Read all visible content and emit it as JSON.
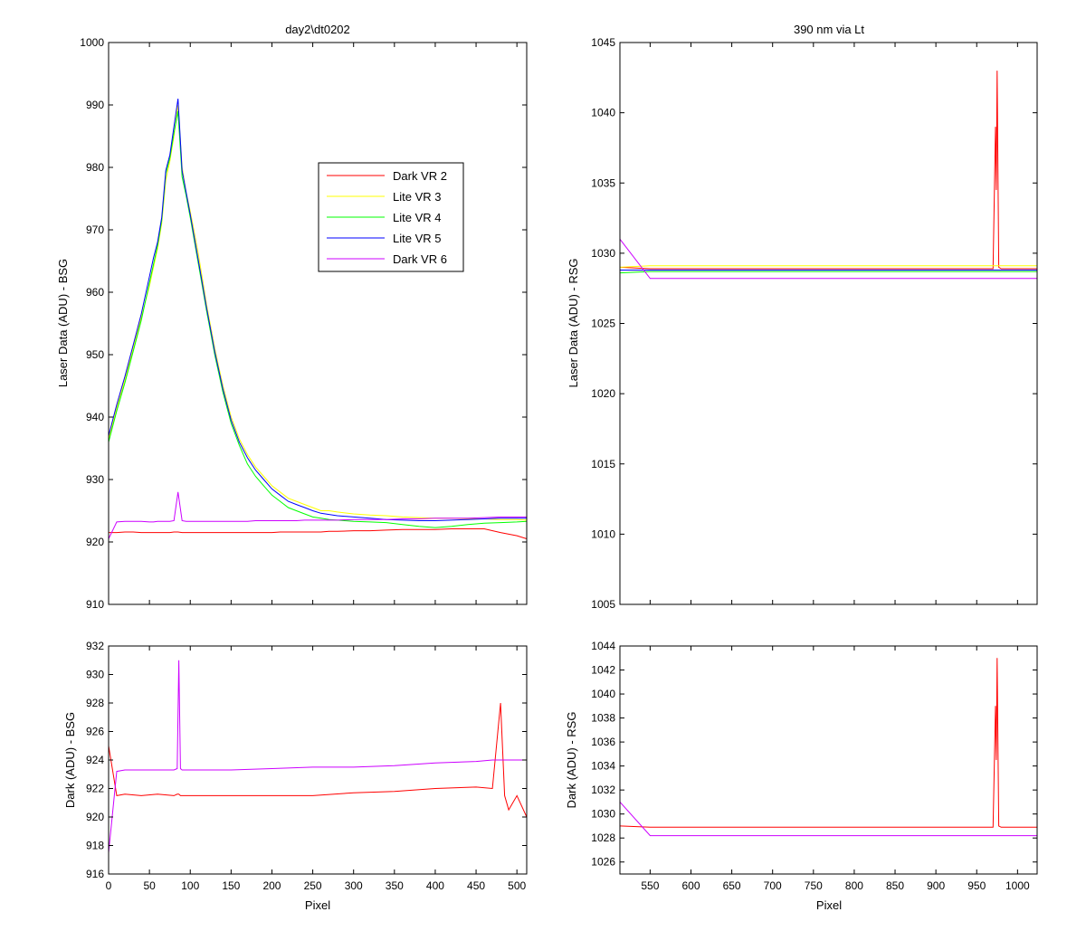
{
  "chart_data": [
    {
      "type": "line",
      "panel": "top-left",
      "title": "day2\\dt0202",
      "xlabel": "",
      "ylabel": "Laser Data (ADU) - BSG",
      "xlim": [
        0,
        512
      ],
      "ylim": [
        910,
        1000
      ],
      "xticks": [
        0,
        50,
        100,
        150,
        200,
        250,
        300,
        350,
        400,
        450,
        500
      ],
      "yticks": [
        910,
        920,
        930,
        940,
        950,
        960,
        970,
        980,
        990,
        1000
      ],
      "xtick_labels_visible": false,
      "grid": false,
      "legend": "center-right",
      "x": [
        0,
        10,
        20,
        30,
        40,
        50,
        55,
        60,
        65,
        70,
        75,
        80,
        85,
        90,
        95,
        100,
        110,
        120,
        130,
        140,
        150,
        160,
        170,
        180,
        190,
        200,
        210,
        220,
        230,
        240,
        250,
        260,
        270,
        280,
        300,
        320,
        340,
        360,
        380,
        400,
        420,
        440,
        460,
        480,
        500,
        512
      ],
      "series": [
        {
          "name": "Dark VR 2",
          "color": "#ff0000",
          "values": [
            921.5,
            921.5,
            921.6,
            921.6,
            921.5,
            921.5,
            921.5,
            921.5,
            921.5,
            921.5,
            921.5,
            921.6,
            921.6,
            921.5,
            921.5,
            921.5,
            921.5,
            921.5,
            921.5,
            921.5,
            921.5,
            921.5,
            921.5,
            921.5,
            921.5,
            921.5,
            921.6,
            921.6,
            921.6,
            921.6,
            921.6,
            921.6,
            921.7,
            921.7,
            921.8,
            921.8,
            921.9,
            922.0,
            922.0,
            922.0,
            922.1,
            922.1,
            922.1,
            921.5,
            921.0,
            920.5
          ]
        },
        {
          "name": "Lite VR 3",
          "color": "#ffff00",
          "values": [
            936.5,
            941.5,
            946,
            951,
            956,
            961,
            964,
            967,
            971,
            978,
            981,
            985,
            990,
            980,
            976,
            973,
            966,
            958,
            951,
            945,
            940,
            936.5,
            934,
            932,
            930.5,
            929,
            928,
            927,
            926.5,
            926,
            925.5,
            925,
            925,
            924.8,
            924.5,
            924.3,
            924.2,
            924.0,
            923.9,
            923.8,
            923.8,
            923.7,
            923.7,
            923.6,
            923.6,
            923.5
          ]
        },
        {
          "name": "Lite VR 4",
          "color": "#00ff00",
          "values": [
            936,
            941,
            945.5,
            950.5,
            955.5,
            961.5,
            964.5,
            967.5,
            971.5,
            979,
            981.5,
            985.5,
            989,
            978.5,
            975.5,
            972,
            964.5,
            957,
            950,
            944,
            939,
            935.5,
            932.5,
            930.5,
            929,
            927.5,
            926.5,
            925.5,
            925,
            924.5,
            924,
            923.8,
            923.6,
            923.5,
            923.3,
            923.2,
            923.1,
            922.8,
            922.5,
            922.3,
            922.5,
            922.8,
            923.0,
            923.1,
            923.2,
            923.3
          ]
        },
        {
          "name": "Lite VR 5",
          "color": "#0000ff",
          "values": [
            937,
            942,
            946.5,
            951.5,
            956.5,
            962.5,
            965.5,
            968,
            972,
            979.5,
            982,
            986.5,
            991,
            979.5,
            976,
            972.5,
            965,
            957.5,
            950.5,
            944.5,
            939.5,
            936,
            933.5,
            931.5,
            930,
            928.5,
            927.5,
            926.5,
            926,
            925.5,
            925,
            924.6,
            924.4,
            924.2,
            924.0,
            923.8,
            923.6,
            923.5,
            923.4,
            923.4,
            923.5,
            923.6,
            923.7,
            923.8,
            923.8,
            923.8
          ]
        },
        {
          "name": "Dark VR 6",
          "color": "#cc00ff",
          "values": [
            920.5,
            923.2,
            923.3,
            923.3,
            923.3,
            923.2,
            923.2,
            923.3,
            923.3,
            923.3,
            923.3,
            923.4,
            928.0,
            923.4,
            923.3,
            923.3,
            923.3,
            923.3,
            923.3,
            923.3,
            923.3,
            923.3,
            923.3,
            923.4,
            923.4,
            923.4,
            923.4,
            923.4,
            923.4,
            923.5,
            923.5,
            923.5,
            923.5,
            923.5,
            923.6,
            923.6,
            923.6,
            923.7,
            923.7,
            923.8,
            923.8,
            923.8,
            923.9,
            924.0,
            924.0,
            924.0
          ]
        }
      ]
    },
    {
      "type": "line",
      "panel": "top-right",
      "title": "390 nm via Lt",
      "xlabel": "",
      "ylabel": "Laser Data (ADU) - RSG",
      "xlim": [
        513,
        1024
      ],
      "ylim": [
        1005,
        1045
      ],
      "xticks": [
        550,
        600,
        650,
        700,
        750,
        800,
        850,
        900,
        950,
        1000
      ],
      "yticks": [
        1005,
        1010,
        1015,
        1020,
        1025,
        1030,
        1035,
        1040,
        1045
      ],
      "xtick_labels_visible": false,
      "grid": false,
      "x": [
        513,
        550,
        600,
        650,
        700,
        750,
        800,
        850,
        900,
        950,
        970,
        973,
        974,
        975,
        976,
        977,
        980,
        1000,
        1024
      ],
      "series": [
        {
          "name": "Dark VR 2",
          "color": "#ff0000",
          "values": [
            1029.0,
            1028.9,
            1028.9,
            1028.9,
            1028.9,
            1028.9,
            1028.9,
            1028.9,
            1028.9,
            1028.9,
            1028.9,
            1039.0,
            1034.5,
            1043.0,
            1036.0,
            1029.0,
            1028.9,
            1028.9,
            1028.9
          ]
        },
        {
          "name": "Lite VR 3",
          "color": "#ffff00",
          "values": [
            1029.0,
            1029.1,
            1029.1,
            1029.1,
            1029.1,
            1029.1,
            1029.1,
            1029.1,
            1029.1,
            1029.1,
            1029.1,
            1029.1,
            1029.1,
            1029.1,
            1029.1,
            1029.1,
            1029.1,
            1029.1,
            1029.1
          ]
        },
        {
          "name": "Lite VR 4",
          "color": "#00ff00",
          "values": [
            1028.6,
            1028.7,
            1028.7,
            1028.7,
            1028.7,
            1028.7,
            1028.7,
            1028.7,
            1028.7,
            1028.7,
            1028.7,
            1028.7,
            1028.7,
            1028.7,
            1028.7,
            1028.7,
            1028.7,
            1028.7,
            1028.7
          ]
        },
        {
          "name": "Lite VR 5",
          "color": "#0000ff",
          "values": [
            1028.8,
            1028.8,
            1028.8,
            1028.8,
            1028.8,
            1028.8,
            1028.8,
            1028.8,
            1028.8,
            1028.8,
            1028.8,
            1028.8,
            1028.8,
            1028.8,
            1028.8,
            1028.8,
            1028.8,
            1028.8,
            1028.8
          ]
        },
        {
          "name": "Dark VR 6",
          "color": "#cc00ff",
          "values": [
            1031.0,
            1028.2,
            1028.2,
            1028.2,
            1028.2,
            1028.2,
            1028.2,
            1028.2,
            1028.2,
            1028.2,
            1028.2,
            1028.2,
            1028.2,
            1028.2,
            1028.2,
            1028.2,
            1028.2,
            1028.2,
            1028.2
          ]
        }
      ]
    },
    {
      "type": "line",
      "panel": "bottom-left",
      "title": "",
      "xlabel": "Pixel",
      "ylabel": "Dark (ADU) - BSG",
      "xlim": [
        0,
        512
      ],
      "ylim": [
        916,
        932
      ],
      "xticks": [
        0,
        50,
        100,
        150,
        200,
        250,
        300,
        350,
        400,
        450,
        500
      ],
      "yticks": [
        916,
        918,
        920,
        922,
        924,
        926,
        928,
        930,
        932
      ],
      "grid": false,
      "x": [
        0,
        10,
        20,
        40,
        60,
        80,
        84,
        86,
        88,
        90,
        100,
        120,
        150,
        200,
        250,
        300,
        350,
        400,
        450,
        470,
        480,
        485,
        490,
        500,
        512
      ],
      "series": [
        {
          "name": "Dark VR 2",
          "color": "#ff0000",
          "values": [
            925.0,
            921.5,
            921.6,
            921.5,
            921.6,
            921.5,
            921.6,
            921.6,
            921.5,
            921.5,
            921.5,
            921.5,
            921.5,
            921.5,
            921.5,
            921.7,
            921.8,
            922.0,
            922.1,
            922.0,
            928.0,
            921.5,
            920.5,
            921.5,
            920.0
          ]
        },
        {
          "name": "Dark VR 6",
          "color": "#cc00ff",
          "values": [
            917.5,
            923.2,
            923.3,
            923.3,
            923.3,
            923.3,
            923.4,
            931.0,
            923.4,
            923.3,
            923.3,
            923.3,
            923.3,
            923.4,
            923.5,
            923.5,
            923.6,
            923.8,
            923.9,
            924.0,
            924.0,
            924.0,
            924.0,
            924.0,
            924.0
          ]
        }
      ]
    },
    {
      "type": "line",
      "panel": "bottom-right",
      "title": "",
      "xlabel": "Pixel",
      "ylabel": "Dark (ADU) - RSG",
      "xlim": [
        513,
        1024
      ],
      "ylim": [
        1025,
        1044
      ],
      "xticks": [
        550,
        600,
        650,
        700,
        750,
        800,
        850,
        900,
        950,
        1000
      ],
      "yticks": [
        1026,
        1028,
        1030,
        1032,
        1034,
        1036,
        1038,
        1040,
        1042,
        1044
      ],
      "grid": false,
      "x": [
        513,
        550,
        600,
        650,
        700,
        750,
        800,
        850,
        900,
        950,
        970,
        973,
        974,
        975,
        976,
        977,
        980,
        1000,
        1024
      ],
      "series": [
        {
          "name": "Dark VR 2",
          "color": "#ff0000",
          "values": [
            1029.0,
            1028.9,
            1028.9,
            1028.9,
            1028.9,
            1028.9,
            1028.9,
            1028.9,
            1028.9,
            1028.9,
            1028.9,
            1039.0,
            1034.5,
            1043.0,
            1036.0,
            1029.0,
            1028.9,
            1028.9,
            1028.9
          ]
        },
        {
          "name": "Dark VR 6",
          "color": "#cc00ff",
          "values": [
            1031.0,
            1028.2,
            1028.2,
            1028.2,
            1028.2,
            1028.2,
            1028.2,
            1028.2,
            1028.2,
            1028.2,
            1028.2,
            1028.2,
            1028.2,
            1028.2,
            1028.2,
            1028.2,
            1028.2,
            1028.2,
            1028.2
          ]
        }
      ]
    }
  ]
}
